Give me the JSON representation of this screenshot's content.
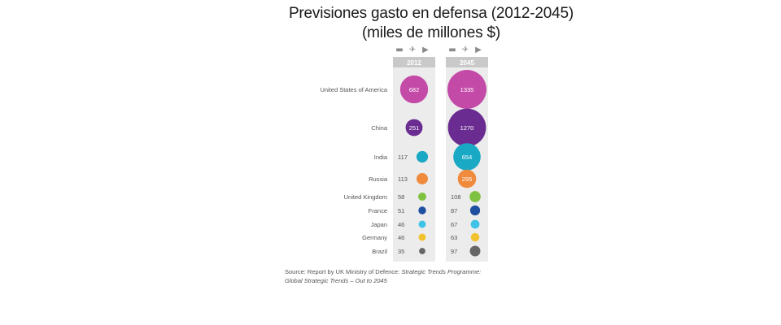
{
  "title": "Previsiones gasto en defensa (2012-2045)",
  "subtitle": "(miles de millones $)",
  "source_prefix": "Source: Report by UK Ministry of Defence: ",
  "source_italic1": "Strategic Trends Programme:",
  "source_italic2": "Global Strategic Trends – Out to 2045",
  "icons": [
    "tank-icon",
    "plane-icon",
    "jet-icon"
  ],
  "chart_data": {
    "type": "bubble",
    "title": "Previsiones gasto en defensa (2012-2045)",
    "subtitle": "(miles de millones $)",
    "columns": [
      "2012",
      "2045"
    ],
    "categories": [
      "United States of America",
      "China",
      "India",
      "Russia",
      "United Kingdom",
      "France",
      "Japan",
      "Germany",
      "Brazil"
    ],
    "series": [
      {
        "name": "2012",
        "values": [
          682,
          251,
          117,
          113,
          58,
          51,
          46,
          46,
          35
        ]
      },
      {
        "name": "2045",
        "values": [
          1335,
          1270,
          654,
          295,
          108,
          87,
          67,
          63,
          97
        ]
      }
    ],
    "colors": [
      "#c44aa8",
      "#6b2c91",
      "#1aa9c4",
      "#f08a3c",
      "#7fc241",
      "#1f4fa0",
      "#3ec3e6",
      "#f2c12e",
      "#666666"
    ],
    "column_bg": "#ececec",
    "header_bg": "#c9c9c9"
  }
}
